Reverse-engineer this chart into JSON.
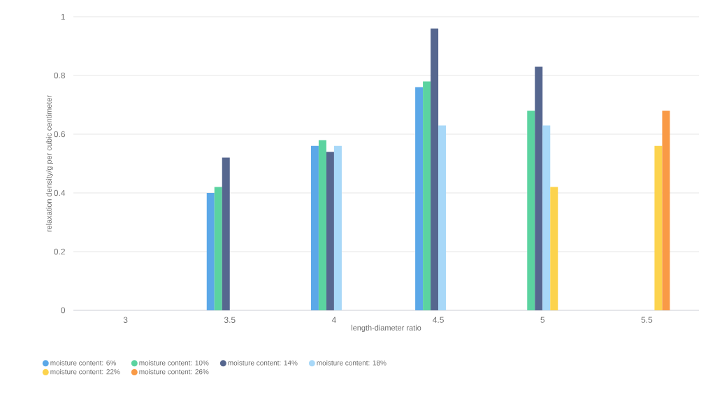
{
  "chart_data": {
    "type": "bar",
    "xlabel": "length-diameter ratio",
    "ylabel": "relaxation density/g per cubic centimeter",
    "categories": [
      "3",
      "3.5",
      "4",
      "4.5",
      "5",
      "5.5"
    ],
    "series": [
      {
        "name": "moisture content: 6%",
        "color": "#5ba8e8",
        "values": [
          null,
          0.4,
          0.56,
          0.76,
          null,
          null
        ]
      },
      {
        "name": "moisture content: 10%",
        "color": "#5bd3a0",
        "values": [
          null,
          0.42,
          0.58,
          0.78,
          0.68,
          null
        ]
      },
      {
        "name": "moisture content: 14%",
        "color": "#56678f",
        "values": [
          null,
          0.52,
          0.54,
          0.96,
          0.83,
          null
        ]
      },
      {
        "name": "moisture content: 18%",
        "color": "#a8d8f8",
        "values": [
          null,
          null,
          0.56,
          0.63,
          0.63,
          null
        ]
      },
      {
        "name": "moisture content: 22%",
        "color": "#fcd34d",
        "values": [
          null,
          null,
          null,
          null,
          0.42,
          0.56
        ]
      },
      {
        "name": "moisture content: 26%",
        "color": "#f99a46",
        "values": [
          null,
          null,
          null,
          null,
          null,
          0.68
        ]
      }
    ],
    "ylim": [
      0,
      1
    ],
    "yticks": [
      0,
      0.2,
      0.4,
      0.6,
      0.8,
      1
    ],
    "grid": "y",
    "legend": "bottom"
  }
}
